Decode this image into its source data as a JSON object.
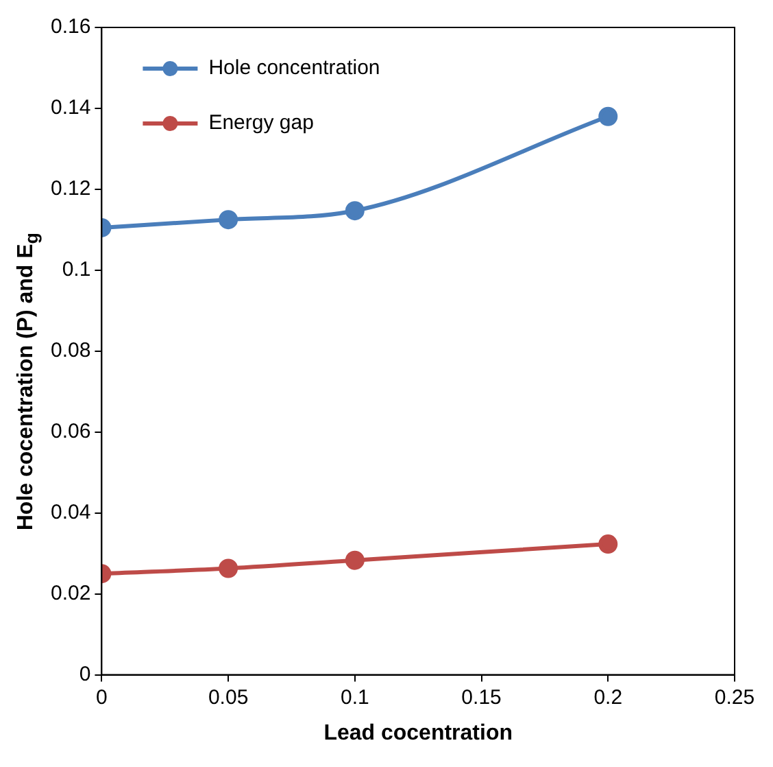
{
  "chart_data": {
    "type": "line",
    "xlabel": "Lead cocentration",
    "ylabel": "Hole cocentration (P) and E$_{g}$",
    "x": [
      0,
      0.05,
      0.1,
      0.2
    ],
    "series": [
      {
        "name": "Hole concentration",
        "color": "#4a7ebb",
        "values": [
          0.1105,
          0.1125,
          0.1147,
          0.138
        ]
      },
      {
        "name": "Energy gap",
        "color": "#be4b48",
        "values": [
          0.025,
          0.0263,
          0.0283,
          0.0323
        ]
      }
    ],
    "xlim": [
      0,
      0.25
    ],
    "xticks": [
      0,
      0.05,
      0.1,
      0.15,
      0.2,
      0.25
    ],
    "ylim": [
      0,
      0.16
    ],
    "yticks": [
      0,
      0.02,
      0.04,
      0.06,
      0.08,
      0.1,
      0.12,
      0.14,
      0.16
    ],
    "grid": false,
    "legend": "top left",
    "marker": "circle",
    "line_style": "solid"
  }
}
